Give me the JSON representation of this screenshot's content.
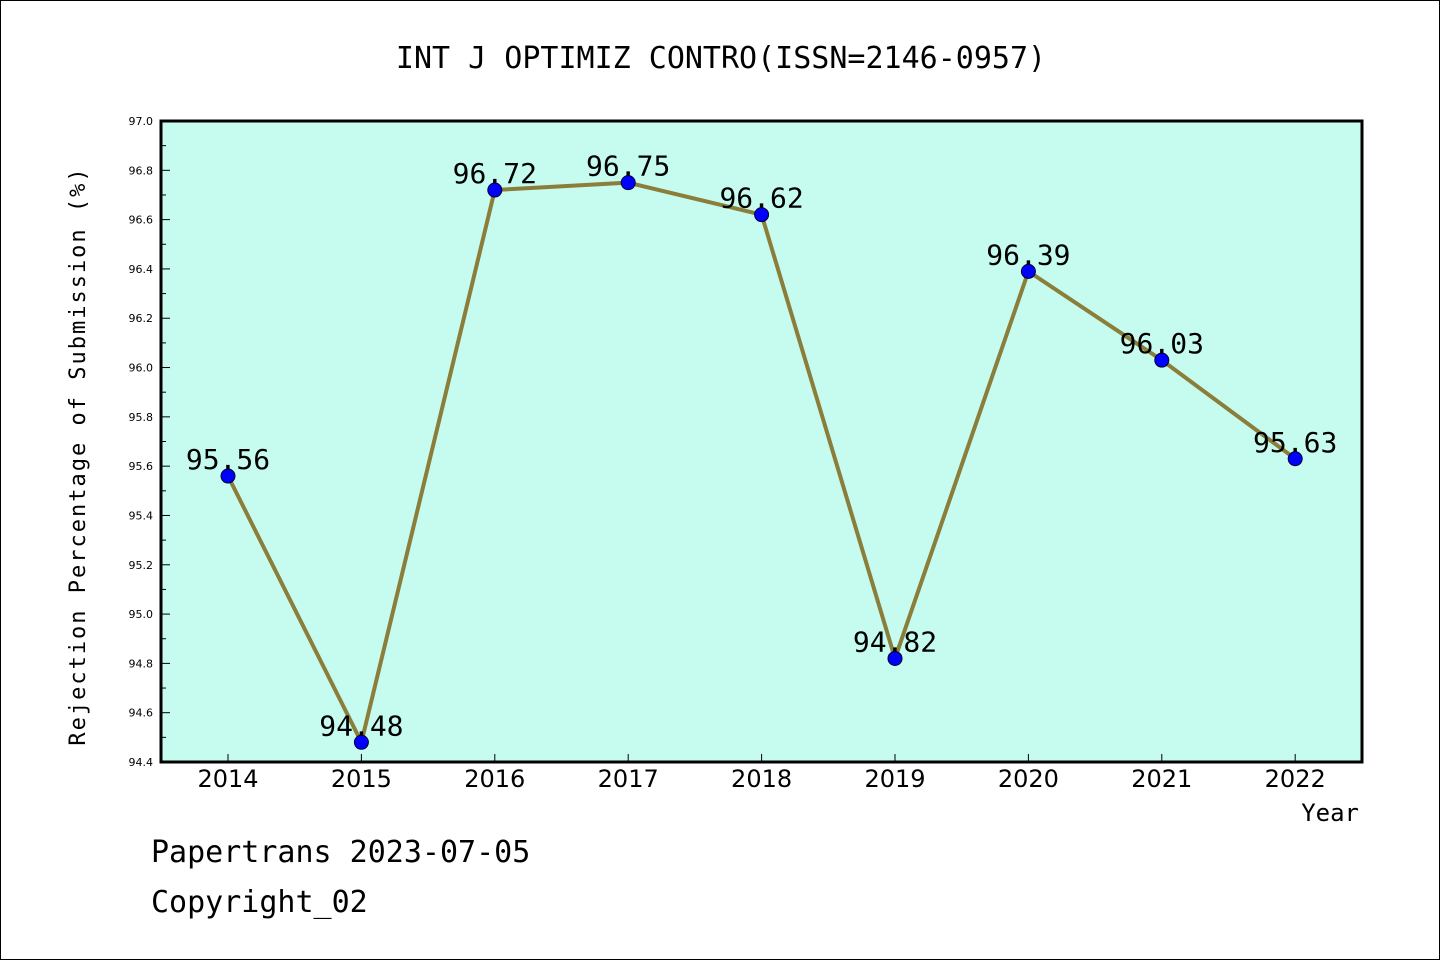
{
  "chart_data": {
    "type": "line",
    "title": "INT J OPTIMIZ CONTRO(ISSN=2146-0957)",
    "xlabel": "Year",
    "ylabel": "Rejection Percentage of Submission (%)",
    "categories": [
      "2014",
      "2015",
      "2016",
      "2017",
      "2018",
      "2019",
      "2020",
      "2021",
      "2022"
    ],
    "values": [
      95.56,
      94.48,
      96.72,
      96.75,
      96.62,
      94.82,
      96.39,
      96.03,
      95.63
    ],
    "data_labels": [
      "95.56",
      "94.48",
      "96.72",
      "96.75",
      "96.62",
      "94.82",
      "96.39",
      "96.03",
      "95.63"
    ],
    "ylim": [
      94.4,
      97.0
    ],
    "yticks": [
      "94.4",
      "94.6",
      "94.8",
      "95.0",
      "95.2",
      "95.4",
      "95.6",
      "95.8",
      "96.0",
      "96.2",
      "96.4",
      "96.6",
      "96.8",
      "97.0"
    ],
    "grid": false,
    "colors": {
      "plot_background": "#c6fcef",
      "line": "#8b7d3a",
      "marker": "#0000ff"
    }
  },
  "footer": {
    "line1": "Papertrans 2023-07-05",
    "line2": "Copyright_02"
  }
}
